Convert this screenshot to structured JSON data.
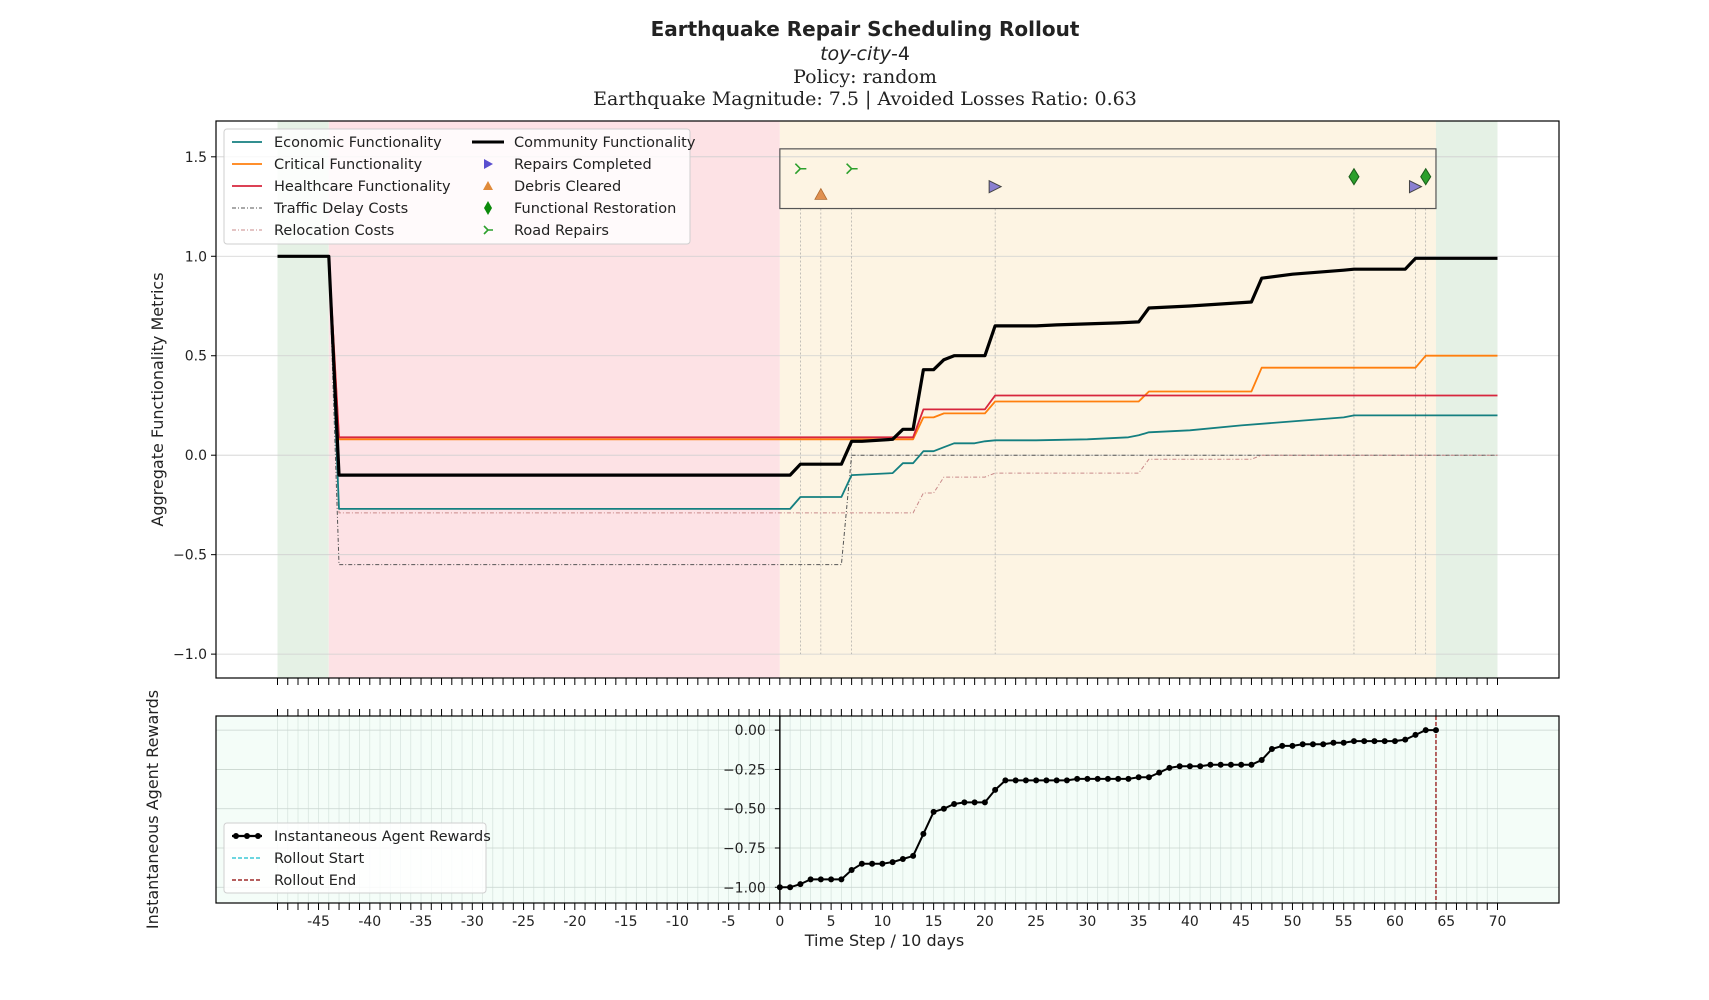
{
  "titles": {
    "title": "Earthquake Repair Scheduling Rollout",
    "subtitle_italic": "toy-city",
    "subtitle_suffix": "-4",
    "policy": "Policy: random",
    "magnitude": "Earthquake Magnitude: 7.5 | Avoided Losses Ratio: 0.63"
  },
  "chart_data": [
    {
      "type": "line",
      "ylabel": "Aggregate Functionality Metrics",
      "xlim": [
        -55,
        76
      ],
      "ylim": [
        -1.12,
        1.68
      ],
      "yticks": [
        -1.0,
        -0.5,
        0.0,
        0.5,
        1.0,
        1.5
      ],
      "grid": true,
      "legend_position": "upper-left",
      "phases": [
        {
          "x0": -49,
          "x1": -44,
          "color": "#e5f1e5"
        },
        {
          "x0": -44,
          "x1": 0,
          "color": "#fde2e5"
        },
        {
          "x0": 0,
          "x1": 64,
          "color": "#fdf4e3"
        },
        {
          "x0": 64,
          "x1": 70,
          "color": "#e5f1e5"
        }
      ],
      "series": [
        {
          "name": "Economic Functionality",
          "color": "#147f80",
          "width": 1.8,
          "dash": "",
          "points": [
            [
              -49,
              1.0
            ],
            [
              -44,
              1.0
            ],
            [
              -43,
              -0.27
            ],
            [
              1,
              -0.27
            ],
            [
              2,
              -0.21
            ],
            [
              6,
              -0.21
            ],
            [
              7,
              -0.1
            ],
            [
              11,
              -0.09
            ],
            [
              12,
              -0.04
            ],
            [
              13,
              -0.04
            ],
            [
              14,
              0.02
            ],
            [
              15,
              0.02
            ],
            [
              16,
              0.04
            ],
            [
              17,
              0.06
            ],
            [
              19,
              0.06
            ],
            [
              20,
              0.07
            ],
            [
              21,
              0.075
            ],
            [
              25,
              0.075
            ],
            [
              30,
              0.08
            ],
            [
              34,
              0.09
            ],
            [
              35,
              0.1
            ],
            [
              36,
              0.115
            ],
            [
              40,
              0.125
            ],
            [
              45,
              0.15
            ],
            [
              50,
              0.17
            ],
            [
              55,
              0.19
            ],
            [
              56,
              0.2
            ],
            [
              60,
              0.2
            ],
            [
              70,
              0.2
            ]
          ]
        },
        {
          "name": "Critical Functionality",
          "color": "#ff7f0e",
          "width": 1.8,
          "dash": "",
          "points": [
            [
              -49,
              1.0
            ],
            [
              -44,
              1.0
            ],
            [
              -43,
              0.08
            ],
            [
              13,
              0.08
            ],
            [
              14,
              0.19
            ],
            [
              15,
              0.19
            ],
            [
              16,
              0.21
            ],
            [
              20,
              0.21
            ],
            [
              21,
              0.27
            ],
            [
              35,
              0.27
            ],
            [
              36,
              0.32
            ],
            [
              46,
              0.32
            ],
            [
              47,
              0.44
            ],
            [
              61,
              0.44
            ],
            [
              62,
              0.44
            ],
            [
              63,
              0.5
            ],
            [
              70,
              0.5
            ]
          ]
        },
        {
          "name": "Healthcare Functionality",
          "color": "#d7263d",
          "width": 1.8,
          "dash": "",
          "points": [
            [
              -49,
              1.0
            ],
            [
              -44,
              1.0
            ],
            [
              -43,
              0.09
            ],
            [
              13,
              0.09
            ],
            [
              14,
              0.23
            ],
            [
              20,
              0.23
            ],
            [
              21,
              0.3
            ],
            [
              70,
              0.3
            ]
          ]
        },
        {
          "name": "Traffic Delay Costs",
          "color": "#555555",
          "width": 1.0,
          "dash": "4,2,1,2",
          "points": [
            [
              -49,
              1.0
            ],
            [
              -44,
              1.0
            ],
            [
              -43,
              -0.55
            ],
            [
              6,
              -0.55
            ],
            [
              7,
              0.0
            ],
            [
              70,
              0.0
            ]
          ]
        },
        {
          "name": "Relocation Costs",
          "color": "#c98a8a",
          "width": 1.0,
          "dash": "4,2,1,2",
          "points": [
            [
              -49,
              1.0
            ],
            [
              -44,
              1.0
            ],
            [
              -43,
              -0.29
            ],
            [
              13,
              -0.29
            ],
            [
              14,
              -0.19
            ],
            [
              15,
              -0.19
            ],
            [
              16,
              -0.11
            ],
            [
              20,
              -0.11
            ],
            [
              21,
              -0.09
            ],
            [
              35,
              -0.09
            ],
            [
              36,
              -0.02
            ],
            [
              46,
              -0.02
            ],
            [
              47,
              0.0
            ],
            [
              70,
              0.0
            ]
          ]
        },
        {
          "name": "Community Functionality",
          "color": "#000000",
          "width": 3.2,
          "dash": "",
          "points": [
            [
              -49,
              1.0
            ],
            [
              -44,
              1.0
            ],
            [
              -43,
              -0.1
            ],
            [
              1,
              -0.1
            ],
            [
              2,
              -0.045
            ],
            [
              6,
              -0.045
            ],
            [
              7,
              0.07
            ],
            [
              8,
              0.07
            ],
            [
              11,
              0.08
            ],
            [
              12,
              0.13
            ],
            [
              13,
              0.13
            ],
            [
              14,
              0.43
            ],
            [
              15,
              0.43
            ],
            [
              16,
              0.48
            ],
            [
              17,
              0.5
            ],
            [
              20,
              0.5
            ],
            [
              21,
              0.65
            ],
            [
              25,
              0.65
            ],
            [
              27,
              0.655
            ],
            [
              30,
              0.66
            ],
            [
              33,
              0.665
            ],
            [
              35,
              0.67
            ],
            [
              36,
              0.74
            ],
            [
              40,
              0.75
            ],
            [
              43,
              0.76
            ],
            [
              46,
              0.77
            ],
            [
              47,
              0.89
            ],
            [
              50,
              0.91
            ],
            [
              55,
              0.93
            ],
            [
              56,
              0.935
            ],
            [
              61,
              0.935
            ],
            [
              62,
              0.99
            ],
            [
              70,
              0.99
            ]
          ]
        }
      ],
      "markers": [
        {
          "name": "Repairs Completed",
          "shape": "triangle-right",
          "color": "#8a7fd0",
          "stroke": "#444",
          "points": [
            [
              21,
              1.35
            ],
            [
              62,
              1.35
            ]
          ]
        },
        {
          "name": "Debris Cleared",
          "shape": "triangle-up",
          "color": "#e09050",
          "stroke": "#b06a30",
          "points": [
            [
              4,
              1.31
            ]
          ]
        },
        {
          "name": "Functional Restoration",
          "shape": "diamond",
          "color": "#2ca02c",
          "stroke": "#1b5e1b",
          "points": [
            [
              56,
              1.4
            ],
            [
              63,
              1.4
            ]
          ]
        },
        {
          "name": "Road Repairs",
          "shape": "tri-right",
          "color": "#2ca02c",
          "stroke": "#2ca02c",
          "points": [
            [
              2,
              1.44
            ],
            [
              7,
              1.44
            ]
          ]
        }
      ],
      "event_lines": [
        2,
        4,
        7,
        21,
        56,
        62,
        63
      ],
      "annotation_box": {
        "x0": 0,
        "x1": 64,
        "y0": 1.24,
        "y1": 1.54
      }
    },
    {
      "type": "line",
      "ylabel": "Instantaneous Agent Rewards",
      "xlabel": "Time Step / 10 days",
      "xlim": [
        -55,
        76
      ],
      "ylim": [
        -1.1,
        0.09
      ],
      "yticks": [
        -1.0,
        -0.75,
        -0.5,
        -0.25,
        0.0
      ],
      "ytick_labels": [
        "−1.00",
        "−0.75",
        "−0.50",
        "−0.25",
        "0.00"
      ],
      "xticks": [
        -45,
        -40,
        -35,
        -30,
        -25,
        -20,
        -15,
        -10,
        -5,
        0,
        5,
        10,
        15,
        20,
        25,
        30,
        35,
        40,
        45,
        50,
        55,
        60,
        65,
        70
      ],
      "xtick_labels": [
        "-45",
        "-40",
        "-35",
        "-30",
        "-25",
        "-20",
        "-15",
        "-10",
        "-5",
        "0",
        "5",
        "10",
        "15",
        "20",
        "25",
        "30",
        "35",
        "40",
        "45",
        "50",
        "55",
        "60",
        "65",
        "70"
      ],
      "minor_tick_range": [
        -49,
        70
      ],
      "grid": true,
      "legend_position": "lower-left",
      "rollout_start": 0,
      "rollout_end": 64,
      "series": [
        {
          "name": "Instantaneous Agent Rewards",
          "color": "#000000",
          "x": [
            0,
            1,
            2,
            3,
            4,
            5,
            6,
            7,
            8,
            9,
            10,
            11,
            12,
            13,
            14,
            15,
            16,
            17,
            18,
            19,
            20,
            21,
            22,
            23,
            24,
            25,
            26,
            27,
            28,
            29,
            30,
            31,
            32,
            33,
            34,
            35,
            36,
            37,
            38,
            39,
            40,
            41,
            42,
            43,
            44,
            45,
            46,
            47,
            48,
            49,
            50,
            51,
            52,
            53,
            54,
            55,
            56,
            57,
            58,
            59,
            60,
            61,
            62,
            63,
            64
          ],
          "values": [
            -1.0,
            -1.0,
            -0.98,
            -0.95,
            -0.95,
            -0.95,
            -0.95,
            -0.89,
            -0.85,
            -0.85,
            -0.85,
            -0.84,
            -0.82,
            -0.8,
            -0.66,
            -0.52,
            -0.5,
            -0.47,
            -0.46,
            -0.46,
            -0.46,
            -0.38,
            -0.32,
            -0.32,
            -0.32,
            -0.32,
            -0.32,
            -0.32,
            -0.32,
            -0.31,
            -0.31,
            -0.31,
            -0.31,
            -0.31,
            -0.31,
            -0.3,
            -0.3,
            -0.27,
            -0.24,
            -0.23,
            -0.23,
            -0.23,
            -0.22,
            -0.22,
            -0.22,
            -0.22,
            -0.22,
            -0.19,
            -0.12,
            -0.1,
            -0.1,
            -0.09,
            -0.09,
            -0.09,
            -0.08,
            -0.08,
            -0.07,
            -0.07,
            -0.07,
            -0.07,
            -0.07,
            -0.06,
            -0.03,
            0.0,
            0.0
          ]
        },
        {
          "name": "Rollout Start",
          "color": "#17becf"
        },
        {
          "name": "Rollout End",
          "color": "#8b0000"
        }
      ]
    }
  ]
}
